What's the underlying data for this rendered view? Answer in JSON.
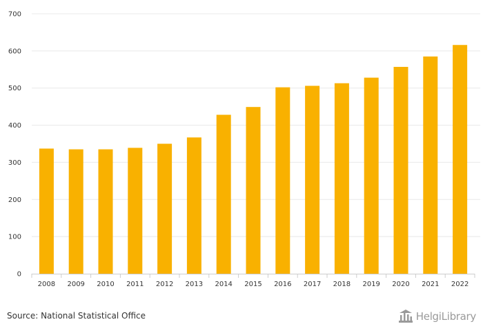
{
  "chart_data": {
    "type": "bar",
    "categories": [
      "2008",
      "2009",
      "2010",
      "2011",
      "2012",
      "2013",
      "2014",
      "2015",
      "2016",
      "2017",
      "2018",
      "2019",
      "2020",
      "2021",
      "2022"
    ],
    "values": [
      337,
      335,
      335,
      339,
      350,
      367,
      428,
      449,
      502,
      506,
      513,
      528,
      557,
      585,
      616
    ],
    "ylim": [
      0,
      700
    ],
    "yticks": [
      0,
      100,
      200,
      300,
      400,
      500,
      600,
      700
    ],
    "grid": true,
    "bar_color": "#f9b100",
    "grid_color": "#e8e8e8",
    "axis_color": "#cccccc"
  },
  "footer": {
    "source": "Source: National Statistical Office",
    "logo_text": "HelgiLibrary"
  }
}
